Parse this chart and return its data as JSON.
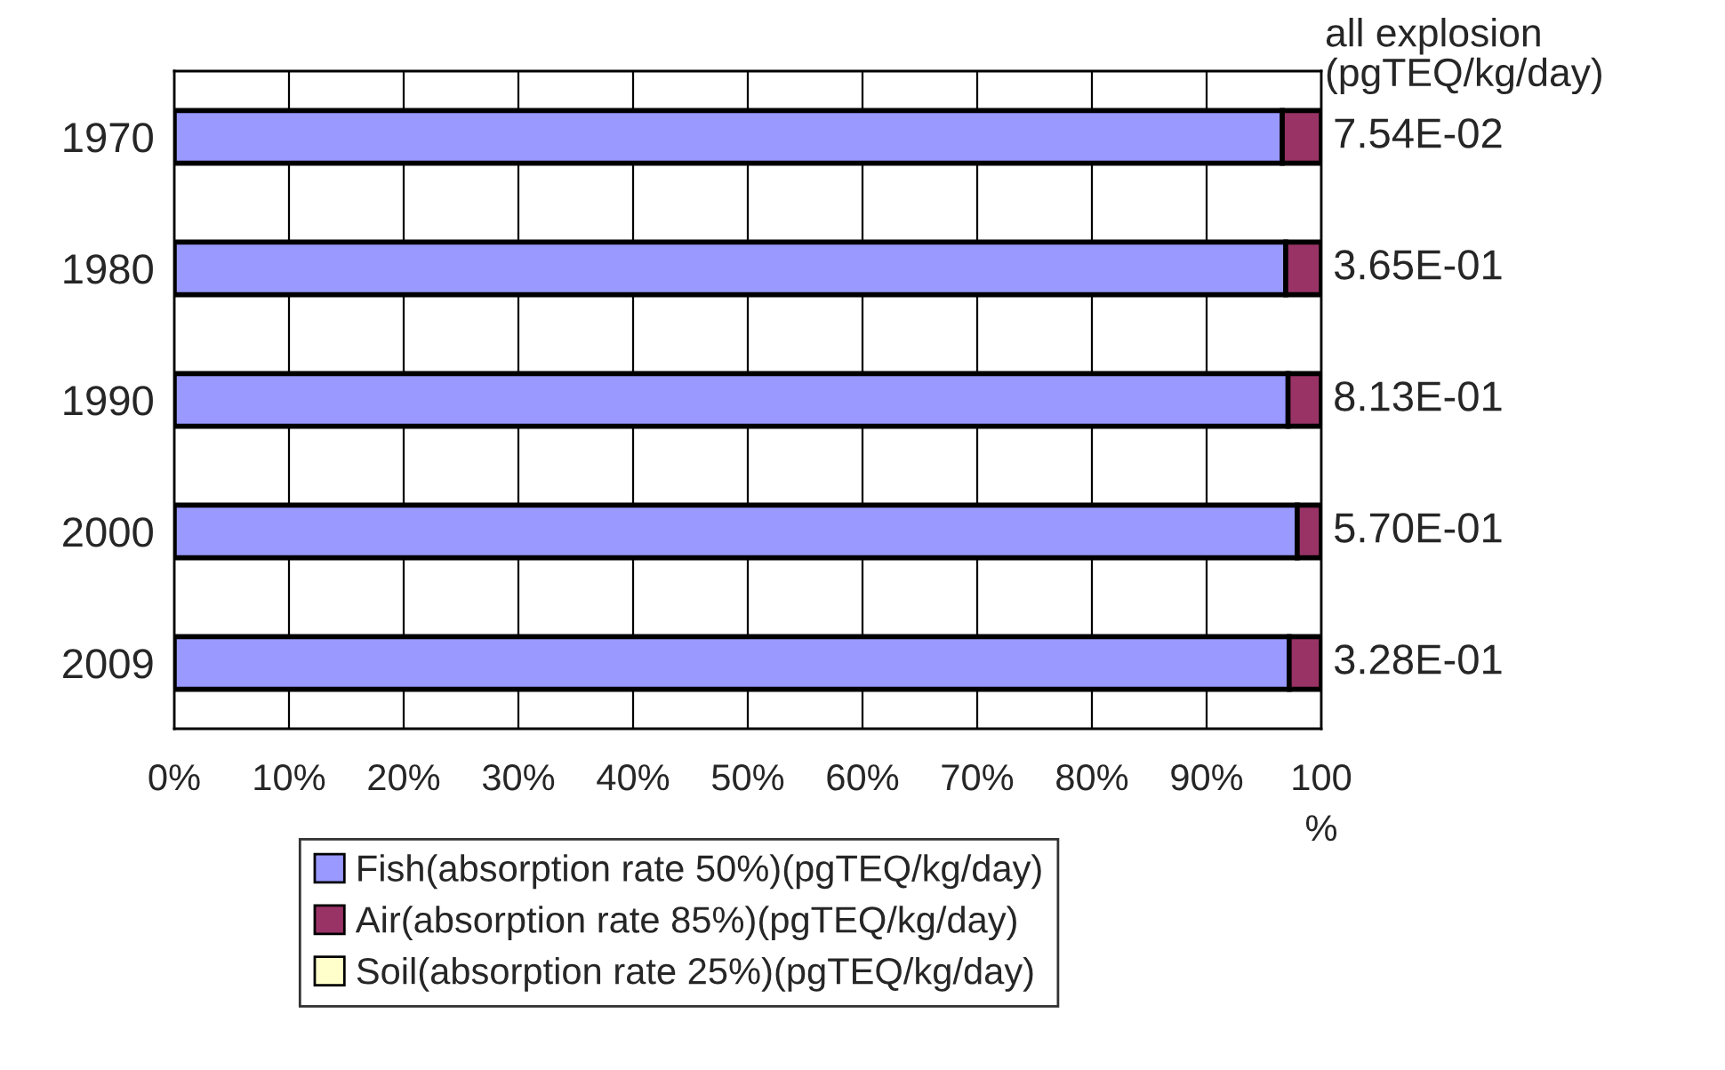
{
  "chart_data": {
    "type": "bar",
    "orientation": "horizontal",
    "stacked": true,
    "categories": [
      "1970",
      "1980",
      "1990",
      "2000",
      "2009"
    ],
    "series": [
      {
        "name": "Fish(absorption rate 50%)(pgTEQ/kg/day)",
        "color": "#9999ff",
        "values": [
          96.6,
          96.9,
          97.1,
          97.9,
          97.2
        ]
      },
      {
        "name": "Air(absorption rate 85%)(pgTEQ/kg/day)",
        "color": "#993366",
        "values": [
          3.4,
          3.1,
          2.9,
          2.1,
          2.8
        ]
      },
      {
        "name": "Soil(absorption rate 25%)(pgTEQ/kg/day)",
        "color": "#ffffcc",
        "values": [
          null,
          null,
          null,
          null,
          null
        ]
      }
    ],
    "xlim": [
      0,
      100
    ],
    "xticks": [
      {
        "value": 0,
        "label": "0%"
      },
      {
        "value": 10,
        "label": "10%"
      },
      {
        "value": 20,
        "label": "20%"
      },
      {
        "value": 30,
        "label": "30%"
      },
      {
        "value": 40,
        "label": "40%"
      },
      {
        "value": 50,
        "label": "50%"
      },
      {
        "value": 60,
        "label": "60%"
      },
      {
        "value": 70,
        "label": "70%"
      },
      {
        "value": 80,
        "label": "80%"
      },
      {
        "value": 90,
        "label": "90%"
      },
      {
        "value": 100,
        "label": "100\n%"
      }
    ],
    "annotations": [
      "all explosion\n(pgTEQ/kg/day)",
      "7.54E-02",
      "3.65E-01",
      "8.13E-01",
      "5.70E-01",
      "3.28E-01"
    ],
    "grid": "x",
    "legend": "bottom"
  }
}
